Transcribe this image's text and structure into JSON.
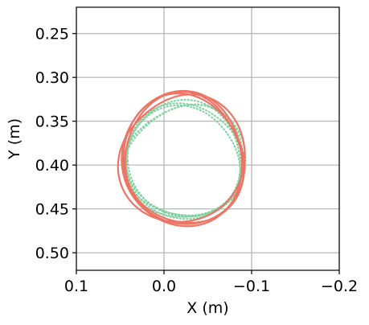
{
  "chart_data": {
    "type": "line",
    "title": "",
    "xlabel": "X (m)",
    "ylabel": "Y (m)",
    "xlim": [
      0.1,
      -0.2
    ],
    "ylim": [
      0.52,
      0.22
    ],
    "x_inverted": true,
    "y_inverted": true,
    "grid": true,
    "xticks": [
      0.1,
      0.0,
      -0.1,
      -0.2
    ],
    "xtick_labels": [
      "0.1",
      "0.0",
      "−0.1",
      "−0.2"
    ],
    "yticks": [
      0.25,
      0.3,
      0.35,
      0.4,
      0.45,
      0.5
    ],
    "ytick_labels": [
      "0.25",
      "0.30",
      "0.35",
      "0.40",
      "0.45",
      "0.50"
    ],
    "series": [
      {
        "style": "dotted",
        "color": "#7fd1a1",
        "center": [
          -0.024,
          0.395
        ],
        "radius_x": 0.068,
        "radius_y": 0.066,
        "loops": 5
      },
      {
        "style": "solid",
        "color": "#ec7566",
        "center": [
          -0.021,
          0.395
        ],
        "radius_x": 0.068,
        "radius_y": 0.072,
        "loops": 4
      }
    ]
  }
}
